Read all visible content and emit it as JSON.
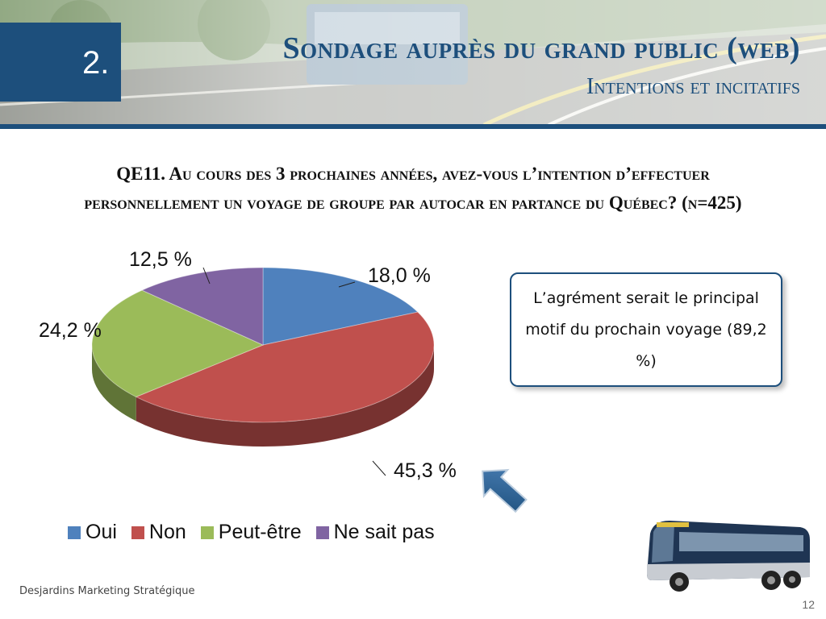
{
  "header": {
    "section_number": "2.",
    "title": "Sondage auprès du grand public (web)",
    "subtitle": "Intentions et incitatifs"
  },
  "question": {
    "line1": "QE11. Au cours des 3 prochaines années, avez-vous l’intention d’effectuer",
    "line2": "personnellement un voyage de groupe par autocar en partance du Québec? (n=425)"
  },
  "chart_data": {
    "type": "pie",
    "categories": [
      "Oui",
      "Non",
      "Peut-être",
      "Ne sait pas"
    ],
    "values": [
      18.0,
      45.3,
      24.2,
      12.5
    ],
    "value_labels": [
      "18,0 %",
      "45,3 %",
      "24,2 %",
      "12,5 %"
    ],
    "colors": [
      "#4f81bd",
      "#c0504d",
      "#9bbb59",
      "#8064a2"
    ],
    "legend_position": "bottom",
    "three_d": true
  },
  "callout": {
    "text": "L’agrément serait le principal motif du prochain voyage (89,2 %)"
  },
  "footer": {
    "company": "Desjardins Marketing Stratégique",
    "page_number": "12"
  },
  "icons": {
    "arrow": "arrow-up-left-icon",
    "bus": "autocar-bus-image"
  }
}
